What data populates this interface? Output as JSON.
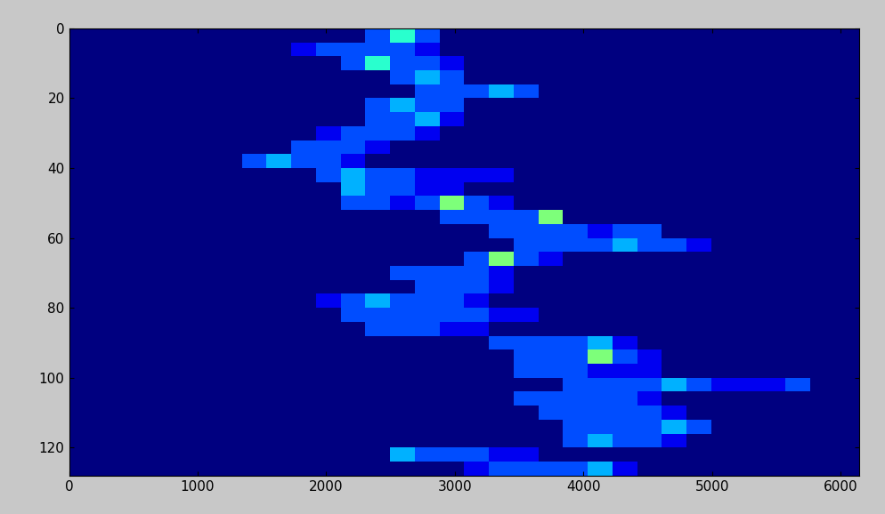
{
  "chart_data": {
    "type": "heatmap",
    "xlim": [
      0,
      6144
    ],
    "ylim": [
      128,
      0
    ],
    "xticks": [
      0,
      1000,
      2000,
      3000,
      4000,
      5000,
      6000
    ],
    "yticks": [
      0,
      20,
      40,
      60,
      80,
      100,
      120
    ],
    "x_edges": [
      0,
      192,
      384,
      576,
      768,
      960,
      1152,
      1344,
      1536,
      1728,
      1920,
      2112,
      2304,
      2496,
      2688,
      2880,
      3072,
      3264,
      3456,
      3648,
      3840,
      4032,
      4224,
      4416,
      4608,
      4800,
      4992,
      5184,
      5376,
      5568,
      5760,
      5952,
      6144
    ],
    "y_edges": [
      0,
      4,
      8,
      12,
      16,
      20,
      24,
      28,
      32,
      36,
      40,
      44,
      48,
      52,
      56,
      60,
      64,
      68,
      72,
      76,
      80,
      84,
      88,
      92,
      96,
      100,
      104,
      108,
      112,
      116,
      120,
      124,
      128
    ],
    "color_range": [
      0,
      10
    ],
    "cells": [
      [
        0,
        0,
        0,
        0,
        0,
        0,
        0,
        0,
        0,
        0,
        0,
        0,
        2,
        4,
        2,
        0,
        0,
        0,
        0,
        0,
        0,
        0,
        0,
        0,
        0,
        0,
        0,
        0,
        0,
        0,
        0,
        0
      ],
      [
        0,
        0,
        0,
        0,
        0,
        0,
        0,
        0,
        0,
        1,
        2,
        2,
        2,
        2,
        1,
        0,
        0,
        0,
        0,
        0,
        0,
        0,
        0,
        0,
        0,
        0,
        0,
        0,
        0,
        0,
        0,
        0
      ],
      [
        0,
        0,
        0,
        0,
        0,
        0,
        0,
        0,
        0,
        0,
        0,
        2,
        4,
        2,
        2,
        1,
        0,
        0,
        0,
        0,
        0,
        0,
        0,
        0,
        0,
        0,
        0,
        0,
        0,
        0,
        0,
        0
      ],
      [
        0,
        0,
        0,
        0,
        0,
        0,
        0,
        0,
        0,
        0,
        0,
        0,
        0,
        2,
        3,
        2,
        0,
        0,
        0,
        0,
        0,
        0,
        0,
        0,
        0,
        0,
        0,
        0,
        0,
        0,
        0,
        0
      ],
      [
        0,
        0,
        0,
        0,
        0,
        0,
        0,
        0,
        0,
        0,
        0,
        0,
        0,
        0,
        2,
        2,
        2,
        3,
        2,
        0,
        0,
        0,
        0,
        0,
        0,
        0,
        0,
        0,
        0,
        0,
        0,
        0
      ],
      [
        0,
        0,
        0,
        0,
        0,
        0,
        0,
        0,
        0,
        0,
        0,
        0,
        2,
        3,
        2,
        2,
        0,
        0,
        0,
        0,
        0,
        0,
        0,
        0,
        0,
        0,
        0,
        0,
        0,
        0,
        0,
        0
      ],
      [
        0,
        0,
        0,
        0,
        0,
        0,
        0,
        0,
        0,
        0,
        0,
        0,
        2,
        2,
        3,
        1,
        0,
        0,
        0,
        0,
        0,
        0,
        0,
        0,
        0,
        0,
        0,
        0,
        0,
        0,
        0,
        0
      ],
      [
        0,
        0,
        0,
        0,
        0,
        0,
        0,
        0,
        0,
        0,
        1,
        2,
        2,
        2,
        1,
        0,
        0,
        0,
        0,
        0,
        0,
        0,
        0,
        0,
        0,
        0,
        0,
        0,
        0,
        0,
        0,
        0
      ],
      [
        0,
        0,
        0,
        0,
        0,
        0,
        0,
        0,
        0,
        2,
        2,
        2,
        1,
        0,
        0,
        0,
        0,
        0,
        0,
        0,
        0,
        0,
        0,
        0,
        0,
        0,
        0,
        0,
        0,
        0,
        0,
        0
      ],
      [
        0,
        0,
        0,
        0,
        0,
        0,
        0,
        2,
        3,
        2,
        2,
        1,
        0,
        0,
        0,
        0,
        0,
        0,
        0,
        0,
        0,
        0,
        0,
        0,
        0,
        0,
        0,
        0,
        0,
        0,
        0,
        0
      ],
      [
        0,
        0,
        0,
        0,
        0,
        0,
        0,
        0,
        0,
        0,
        2,
        3,
        2,
        2,
        1,
        1,
        1,
        1,
        0,
        0,
        0,
        0,
        0,
        0,
        0,
        0,
        0,
        0,
        0,
        0,
        0,
        0
      ],
      [
        0,
        0,
        0,
        0,
        0,
        0,
        0,
        0,
        0,
        0,
        0,
        3,
        2,
        2,
        1,
        1,
        0,
        0,
        0,
        0,
        0,
        0,
        0,
        0,
        0,
        0,
        0,
        0,
        0,
        0,
        0,
        0
      ],
      [
        0,
        0,
        0,
        0,
        0,
        0,
        0,
        0,
        0,
        0,
        0,
        2,
        2,
        1,
        2,
        5,
        2,
        1,
        0,
        0,
        0,
        0,
        0,
        0,
        0,
        0,
        0,
        0,
        0,
        0,
        0,
        0
      ],
      [
        0,
        0,
        0,
        0,
        0,
        0,
        0,
        0,
        0,
        0,
        0,
        0,
        0,
        0,
        0,
        2,
        2,
        2,
        2,
        5,
        0,
        0,
        0,
        0,
        0,
        0,
        0,
        0,
        0,
        0,
        0,
        0
      ],
      [
        0,
        0,
        0,
        0,
        0,
        0,
        0,
        0,
        0,
        0,
        0,
        0,
        0,
        0,
        0,
        0,
        0,
        2,
        2,
        2,
        2,
        1,
        2,
        2,
        0,
        0,
        0,
        0,
        0,
        0,
        0,
        0
      ],
      [
        0,
        0,
        0,
        0,
        0,
        0,
        0,
        0,
        0,
        0,
        0,
        0,
        0,
        0,
        0,
        0,
        0,
        0,
        2,
        2,
        2,
        2,
        3,
        2,
        2,
        1,
        0,
        0,
        0,
        0,
        0,
        0
      ],
      [
        0,
        0,
        0,
        0,
        0,
        0,
        0,
        0,
        0,
        0,
        0,
        0,
        0,
        0,
        0,
        0,
        2,
        5,
        2,
        1,
        0,
        0,
        0,
        0,
        0,
        0,
        0,
        0,
        0,
        0,
        0,
        0
      ],
      [
        0,
        0,
        0,
        0,
        0,
        0,
        0,
        0,
        0,
        0,
        0,
        0,
        0,
        2,
        2,
        2,
        2,
        1,
        0,
        0,
        0,
        0,
        0,
        0,
        0,
        0,
        0,
        0,
        0,
        0,
        0,
        0
      ],
      [
        0,
        0,
        0,
        0,
        0,
        0,
        0,
        0,
        0,
        0,
        0,
        0,
        0,
        0,
        2,
        2,
        2,
        1,
        0,
        0,
        0,
        0,
        0,
        0,
        0,
        0,
        0,
        0,
        0,
        0,
        0,
        0
      ],
      [
        0,
        0,
        0,
        0,
        0,
        0,
        0,
        0,
        0,
        0,
        1,
        2,
        3,
        2,
        2,
        2,
        1,
        0,
        0,
        0,
        0,
        0,
        0,
        0,
        0,
        0,
        0,
        0,
        0,
        0,
        0,
        0
      ],
      [
        0,
        0,
        0,
        0,
        0,
        0,
        0,
        0,
        0,
        0,
        0,
        2,
        2,
        2,
        2,
        2,
        2,
        1,
        1,
        0,
        0,
        0,
        0,
        0,
        0,
        0,
        0,
        0,
        0,
        0,
        0,
        0
      ],
      [
        0,
        0,
        0,
        0,
        0,
        0,
        0,
        0,
        0,
        0,
        0,
        0,
        2,
        2,
        2,
        1,
        1,
        0,
        0,
        0,
        0,
        0,
        0,
        0,
        0,
        0,
        0,
        0,
        0,
        0,
        0,
        0
      ],
      [
        0,
        0,
        0,
        0,
        0,
        0,
        0,
        0,
        0,
        0,
        0,
        0,
        0,
        0,
        0,
        0,
        0,
        2,
        2,
        2,
        2,
        3,
        1,
        0,
        0,
        0,
        0,
        0,
        0,
        0,
        0,
        0
      ],
      [
        0,
        0,
        0,
        0,
        0,
        0,
        0,
        0,
        0,
        0,
        0,
        0,
        0,
        0,
        0,
        0,
        0,
        0,
        2,
        2,
        2,
        5,
        2,
        1,
        0,
        0,
        0,
        0,
        0,
        0,
        0,
        0
      ],
      [
        0,
        0,
        0,
        0,
        0,
        0,
        0,
        0,
        0,
        0,
        0,
        0,
        0,
        0,
        0,
        0,
        0,
        0,
        2,
        2,
        2,
        1,
        1,
        1,
        0,
        0,
        0,
        0,
        0,
        0,
        0,
        0
      ],
      [
        0,
        0,
        0,
        0,
        0,
        0,
        0,
        0,
        0,
        0,
        0,
        0,
        0,
        0,
        0,
        0,
        0,
        0,
        0,
        0,
        2,
        2,
        2,
        2,
        3,
        2,
        1,
        1,
        1,
        2,
        0,
        0
      ],
      [
        0,
        0,
        0,
        0,
        0,
        0,
        0,
        0,
        0,
        0,
        0,
        0,
        0,
        0,
        0,
        0,
        0,
        0,
        2,
        2,
        2,
        2,
        2,
        1,
        0,
        0,
        0,
        0,
        0,
        0,
        0,
        0
      ],
      [
        0,
        0,
        0,
        0,
        0,
        0,
        0,
        0,
        0,
        0,
        0,
        0,
        0,
        0,
        0,
        0,
        0,
        0,
        0,
        2,
        2,
        2,
        2,
        2,
        1,
        0,
        0,
        0,
        0,
        0,
        0,
        0
      ],
      [
        0,
        0,
        0,
        0,
        0,
        0,
        0,
        0,
        0,
        0,
        0,
        0,
        0,
        0,
        0,
        0,
        0,
        0,
        0,
        0,
        2,
        2,
        2,
        2,
        3,
        2,
        0,
        0,
        0,
        0,
        0,
        0
      ],
      [
        0,
        0,
        0,
        0,
        0,
        0,
        0,
        0,
        0,
        0,
        0,
        0,
        0,
        0,
        0,
        0,
        0,
        0,
        0,
        0,
        2,
        3,
        2,
        2,
        1,
        0,
        0,
        0,
        0,
        0,
        0,
        0
      ],
      [
        0,
        0,
        0,
        0,
        0,
        0,
        0,
        0,
        0,
        0,
        0,
        0,
        0,
        3,
        2,
        2,
        2,
        1,
        1,
        0,
        0,
        0,
        0,
        0,
        0,
        0,
        0,
        0,
        0,
        0,
        0,
        0
      ],
      [
        0,
        0,
        0,
        0,
        0,
        0,
        0,
        0,
        0,
        0,
        0,
        0,
        0,
        0,
        0,
        0,
        1,
        2,
        2,
        2,
        2,
        3,
        1,
        0,
        0,
        0,
        0,
        0,
        0,
        0,
        0,
        0
      ]
    ]
  }
}
